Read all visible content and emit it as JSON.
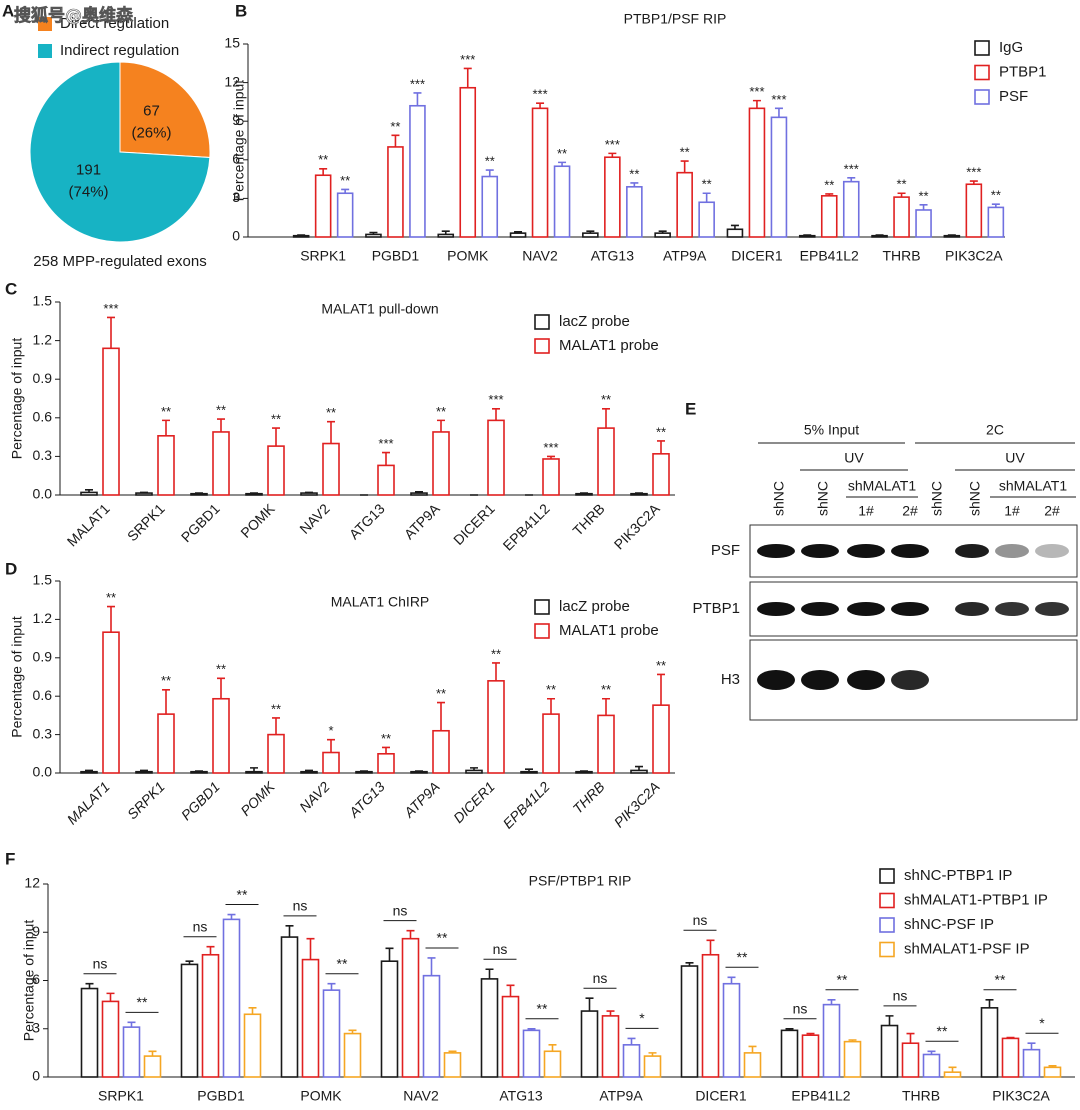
{
  "watermark": "搜狐号@奥维森",
  "chart_data": [
    {
      "type": "pie",
      "panel_label": "A",
      "labels": [
        "Direct regulation",
        "Indirect regulation"
      ],
      "values": [
        67,
        191
      ],
      "percents": [
        26,
        74
      ],
      "percent_labels": [
        "(26%)",
        "(74%)"
      ],
      "colors": [
        "#f5821f",
        "#17b3c4"
      ],
      "footnote": "258 MPP-regulated exons"
    },
    {
      "type": "bar",
      "panel_label": "B",
      "title": "PTBP1/PSF RIP",
      "y_label": "Percentage of input",
      "categories": [
        "SRPK1",
        "PGBD1",
        "POMK",
        "NAV2",
        "ATG13",
        "ATP9A",
        "DICER1",
        "EPB41L2",
        "THRB",
        "PIK3C2A"
      ],
      "ylim": [
        0,
        15
      ],
      "yticks": [
        0,
        3,
        6,
        9,
        12,
        15
      ],
      "series": [
        {
          "name": "IgG",
          "color": "#1a1a1a",
          "values": [
            0.1,
            0.2,
            0.2,
            0.3,
            0.3,
            0.3,
            0.6,
            0.1,
            0.1,
            0.1
          ],
          "errors": [
            0.05,
            0.15,
            0.25,
            0.1,
            0.15,
            0.15,
            0.3,
            0.05,
            0.05,
            0.05
          ]
        },
        {
          "name": "PTBP1",
          "color": "#e02020",
          "values": [
            4.8,
            7.0,
            11.6,
            10.0,
            6.2,
            5.0,
            10.0,
            3.2,
            3.1,
            4.1
          ],
          "errors": [
            0.5,
            0.9,
            1.5,
            0.4,
            0.3,
            0.9,
            0.6,
            0.15,
            0.3,
            0.25
          ],
          "annotations": [
            "**",
            "**",
            "***",
            "***",
            "***",
            "**",
            "***",
            "**",
            "**",
            "***"
          ]
        },
        {
          "name": "PSF",
          "color": "#7070e0",
          "values": [
            3.4,
            10.2,
            4.7,
            5.5,
            3.9,
            2.7,
            9.3,
            4.3,
            2.1,
            2.3
          ],
          "errors": [
            0.3,
            1.0,
            0.5,
            0.3,
            0.3,
            0.7,
            0.7,
            0.3,
            0.4,
            0.25
          ],
          "annotations": [
            "**",
            "***",
            "**",
            "**",
            "**",
            "**",
            "***",
            "***",
            "**",
            "**"
          ]
        }
      ]
    },
    {
      "type": "bar",
      "panel_label": "C",
      "title": "MALAT1 pull-down",
      "y_label": "Percentage of input",
      "categories": [
        "MALAT1",
        "SRPK1",
        "PGBD1",
        "POMK",
        "NAV2",
        "ATG13",
        "ATP9A",
        "DICER1",
        "EPB41L2",
        "THRB",
        "PIK3C2A"
      ],
      "ylim": [
        0,
        1.5
      ],
      "yticks": [
        {
          "value": 0,
          "label": "0.0"
        },
        0.3,
        0.6,
        0.9,
        1.2,
        1.5
      ],
      "series": [
        {
          "name": "lacZ probe",
          "color": "#1a1a1a",
          "values": [
            0.02,
            0.015,
            0.01,
            0.01,
            0.015,
            0,
            0.015,
            0,
            0,
            0.01,
            0.01
          ],
          "errors": [
            0.02,
            0.005,
            0.005,
            0.005,
            0.005,
            0,
            0.01,
            0,
            0,
            0.005,
            0.005
          ]
        },
        {
          "name": "MALAT1 probe",
          "color": "#e02020",
          "values": [
            1.14,
            0.46,
            0.49,
            0.38,
            0.4,
            0.23,
            0.49,
            0.58,
            0.28,
            0.52,
            0.32
          ],
          "errors": [
            0.24,
            0.12,
            0.1,
            0.14,
            0.17,
            0.1,
            0.09,
            0.09,
            0.02,
            0.15,
            0.1
          ],
          "annotations": [
            "***",
            "**",
            "**",
            "**",
            "**",
            "***",
            "**",
            "***",
            "***",
            "**",
            "**"
          ]
        }
      ]
    },
    {
      "type": "bar",
      "panel_label": "D",
      "title": "MALAT1 ChIRP",
      "y_label": "Percentage of input",
      "italic_categories": true,
      "categories": [
        "MALAT1",
        "SRPK1",
        "PGBD1",
        "POMK",
        "NAV2",
        "ATG13",
        "ATP9A",
        "DICER1",
        "EPB41L2",
        "THRB",
        "PIK3C2A"
      ],
      "ylim": [
        0,
        1.5
      ],
      "yticks": [
        {
          "value": 0,
          "label": "0.0"
        },
        0.3,
        0.6,
        0.9,
        1.2,
        1.5
      ],
      "series": [
        {
          "name": "lacZ probe",
          "color": "#1a1a1a",
          "values": [
            0.01,
            0.01,
            0.01,
            0.01,
            0.01,
            0.01,
            0.01,
            0.02,
            0.01,
            0.01,
            0.02
          ],
          "errors": [
            0.01,
            0.01,
            0.005,
            0.03,
            0.01,
            0.005,
            0.005,
            0.02,
            0.02,
            0.005,
            0.03
          ]
        },
        {
          "name": "MALAT1 probe",
          "color": "#e02020",
          "values": [
            1.1,
            0.46,
            0.58,
            0.3,
            0.16,
            0.15,
            0.33,
            0.72,
            0.46,
            0.45,
            0.53
          ],
          "errors": [
            0.2,
            0.19,
            0.16,
            0.13,
            0.1,
            0.05,
            0.22,
            0.14,
            0.12,
            0.13,
            0.24
          ],
          "annotations": [
            "**",
            "**",
            "**",
            "**",
            "*",
            "**",
            "**",
            "**",
            "**",
            "**",
            "**"
          ]
        }
      ]
    },
    {
      "type": "bar",
      "panel_label": "F",
      "title": "PSF/PTBP1 RIP",
      "y_label": "Percentage of input",
      "categories": [
        "SRPK1",
        "PGBD1",
        "POMK",
        "NAV2",
        "ATG13",
        "ATP9A",
        "DICER1",
        "EPB41L2",
        "THRB",
        "PIK3C2A"
      ],
      "ylim": [
        0,
        12
      ],
      "yticks": [
        0,
        3,
        6,
        9,
        12
      ],
      "series": [
        {
          "name": "shNC-PTBP1 IP",
          "color": "#1a1a1a",
          "values": [
            5.5,
            7.0,
            8.7,
            7.2,
            6.1,
            4.1,
            6.9,
            2.9,
            3.2,
            4.3
          ],
          "errors": [
            0.3,
            0.2,
            0.7,
            0.8,
            0.6,
            0.8,
            0.2,
            0.1,
            0.6,
            0.5
          ]
        },
        {
          "name": "shMALAT1-PTBP1 IP",
          "color": "#e02020",
          "values": [
            4.7,
            7.6,
            7.3,
            8.6,
            5.0,
            3.8,
            7.6,
            2.6,
            2.1,
            2.4
          ],
          "errors": [
            0.5,
            0.5,
            1.3,
            0.5,
            0.7,
            0.3,
            0.9,
            0.1,
            0.6,
            0.05
          ]
        },
        {
          "name": "shNC-PSF IP",
          "color": "#7070e0",
          "values": [
            3.1,
            9.8,
            5.4,
            6.3,
            2.9,
            2.0,
            5.8,
            4.5,
            1.4,
            1.7
          ],
          "errors": [
            0.3,
            0.3,
            0.4,
            1.1,
            0.1,
            0.4,
            0.4,
            0.3,
            0.2,
            0.4
          ]
        },
        {
          "name": "shMALAT1-PSF IP",
          "color": "#f5a623",
          "values": [
            1.3,
            3.9,
            2.7,
            1.5,
            1.6,
            1.3,
            1.5,
            2.2,
            0.3,
            0.6
          ],
          "errors": [
            0.3,
            0.4,
            0.2,
            0.1,
            0.4,
            0.2,
            0.4,
            0.1,
            0.3,
            0.1
          ]
        }
      ],
      "comparisons": [
        {
          "series": [
            0,
            1
          ],
          "labels": [
            "ns",
            "ns",
            "ns",
            "ns",
            "ns",
            "ns",
            "ns",
            "ns",
            "ns",
            "**"
          ]
        },
        {
          "series": [
            2,
            3
          ],
          "labels": [
            "**",
            "**",
            "**",
            "**",
            "**",
            "*",
            "**",
            "**",
            "**",
            "*"
          ]
        }
      ]
    }
  ],
  "blot": {
    "panel_label": "E",
    "groups": [
      "5% Input",
      "2C"
    ],
    "treatments": [
      "UV",
      "UV"
    ],
    "knockdowns": [
      "shMALAT1",
      "shMALAT1"
    ],
    "lane_labels": [
      "shNC",
      "shNC",
      "shNC",
      "shNC"
    ],
    "clone_labels": [
      "1#",
      "2#",
      "1#",
      "2#"
    ],
    "rows": [
      "PSF",
      "PTBP1",
      "H3"
    ]
  }
}
